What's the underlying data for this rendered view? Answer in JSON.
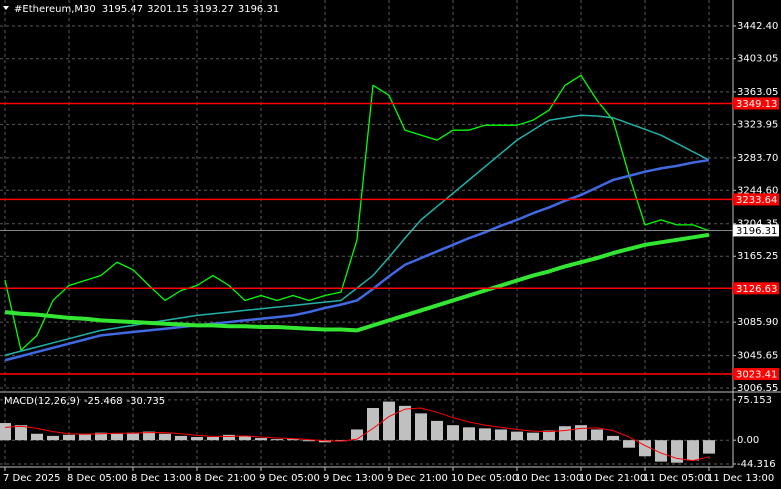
{
  "chart_data": [
    {
      "type": "line",
      "title": "#Ethereum,M30",
      "ohlc": [
        3195.47,
        3201.15,
        3193.27,
        3196.31
      ],
      "categories": [
        "7 Dec 2025",
        null,
        null,
        null,
        "8 Dec 05:00",
        null,
        null,
        null,
        "8 Dec 13:00",
        null,
        null,
        null,
        "8 Dec 21:00",
        null,
        null,
        null,
        "9 Dec 05:00",
        null,
        null,
        null,
        "9 Dec 13:00",
        null,
        null,
        null,
        "9 Dec 21:00",
        null,
        null,
        null,
        "10 Dec 05:00",
        null,
        null,
        null,
        "10 Dec 13:00",
        null,
        null,
        null,
        "10 Dec 21:00",
        null,
        null,
        null,
        "11 Dec 05:00",
        null,
        null,
        null,
        "11 Dec 13:00"
      ],
      "series": [
        {
          "color": "#00ff00",
          "width": 1.3,
          "values": [
            3136.6,
            3052,
            3070,
            3112,
            3130,
            3136,
            3142,
            3158,
            3149,
            3130,
            3112,
            3124,
            3130,
            3142,
            3130,
            3112,
            3118,
            3112,
            3118,
            3112,
            3118,
            3122,
            3185,
            3371,
            3359,
            3317,
            3311,
            3305,
            3317,
            3317,
            3323,
            3323,
            3323,
            3329,
            3341,
            3371,
            3383,
            3353,
            3329,
            3263,
            3203,
            3209,
            3203,
            3203,
            3196
          ]
        },
        {
          "color": "#20b2aa",
          "width": 1.5,
          "values": [
            3046,
            3051,
            3056,
            3061,
            3066,
            3071,
            3076,
            3079,
            3082,
            3085,
            3088,
            3091,
            3094,
            3096,
            3098,
            3100,
            3102,
            3104,
            3106,
            3108,
            3110,
            3112,
            3127,
            3142,
            3164,
            3187,
            3209,
            3225,
            3241,
            3257,
            3273,
            3289,
            3305,
            3317,
            3329,
            3332,
            3335,
            3334,
            3332,
            3325,
            3318,
            3311,
            3301,
            3291,
            3281
          ]
        },
        {
          "color": "#4169e1",
          "width": 2.5,
          "values": [
            3040,
            3045,
            3050,
            3055,
            3060,
            3065,
            3070,
            3072,
            3074,
            3076,
            3078,
            3080,
            3082,
            3084,
            3086,
            3088,
            3090,
            3092,
            3094,
            3098,
            3103,
            3107,
            3112,
            3126,
            3141,
            3155,
            3163,
            3171,
            3179,
            3187,
            3194,
            3202,
            3209,
            3217,
            3224,
            3232,
            3239,
            3248,
            3257,
            3262,
            3267,
            3271,
            3274,
            3278,
            3281
          ]
        },
        {
          "color": "#32e632",
          "width": 4,
          "values": [
            3098,
            3096,
            3095,
            3093,
            3091,
            3090,
            3088,
            3087,
            3086,
            3085,
            3084,
            3083,
            3082,
            3082,
            3081,
            3081,
            3080,
            3080,
            3079,
            3078,
            3077,
            3077,
            3076,
            3082,
            3088,
            3094,
            3100,
            3106,
            3112,
            3118,
            3124,
            3130,
            3136,
            3142,
            3147,
            3153,
            3158,
            3163,
            3169,
            3174,
            3179,
            3182,
            3185,
            3188,
            3191
          ]
        }
      ],
      "ylim": [
        3001.8,
        3473.7
      ],
      "yticks": [
        {
          "value": 3442.4,
          "label": "3442.40"
        },
        3403.05,
        3363.05,
        3323.95,
        {
          "value": 3283.7,
          "label": "3283.70"
        },
        {
          "value": 3244.6,
          "label": "3244.60"
        },
        3204.35,
        3165.25,
        {
          "value": 3085.9,
          "label": "3085.90"
        },
        3045.65,
        3006.55
      ],
      "levels": [
        3349.13,
        3233.64,
        3126.63,
        3023.41
      ],
      "level_color": "#ff0000",
      "last_price": 3196.31,
      "grid": true
    },
    {
      "type": "bar",
      "title": "MACD(12,26,9)",
      "readout": [
        -25.468,
        -30.735
      ],
      "series": [
        {
          "color": "#c0c0c0",
          "values": [
            32,
            28,
            12,
            8,
            10,
            12,
            14,
            12,
            14,
            16,
            12,
            8,
            6,
            6,
            10,
            8,
            4,
            2,
            2,
            -2,
            -4,
            -2,
            20,
            60,
            72,
            64,
            50,
            36,
            28,
            24,
            22,
            20,
            16,
            14,
            18,
            26,
            28,
            20,
            8,
            -14,
            -30,
            -40,
            -42,
            -38,
            -25
          ]
        },
        {
          "color": "#ff0000",
          "values": [
            24,
            26,
            22,
            16,
            12,
            11,
            12,
            13,
            13,
            14,
            14,
            12,
            9,
            7,
            7,
            8,
            6,
            4,
            3,
            1,
            -1,
            -2,
            2,
            22,
            44,
            58,
            60,
            52,
            42,
            34,
            28,
            24,
            20,
            17,
            16,
            18,
            22,
            23,
            18,
            6,
            -10,
            -24,
            -34,
            -38,
            -31
          ]
        }
      ],
      "ylim": [
        -50,
        88
      ],
      "yticks": [
        75.153,
        {
          "value": 0,
          "label": "0.00"
        },
        -44.316
      ],
      "grid": true
    }
  ]
}
